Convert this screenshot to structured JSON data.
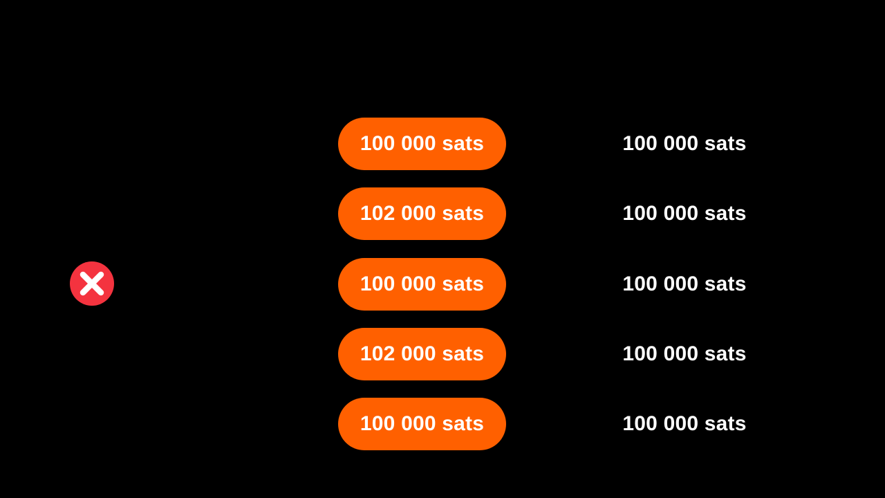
{
  "status": {
    "icon": "cross-mark-icon",
    "color": "#f4333f"
  },
  "accent_color": "#ff6000",
  "rows": [
    {
      "left": "100 000 sats",
      "right": "100 000 sats"
    },
    {
      "left": "102 000 sats",
      "right": "100 000 sats"
    },
    {
      "left": "100 000 sats",
      "right": "100 000 sats"
    },
    {
      "left": "102 000 sats",
      "right": "100 000 sats"
    },
    {
      "left": "100 000 sats",
      "right": "100 000 sats"
    }
  ]
}
